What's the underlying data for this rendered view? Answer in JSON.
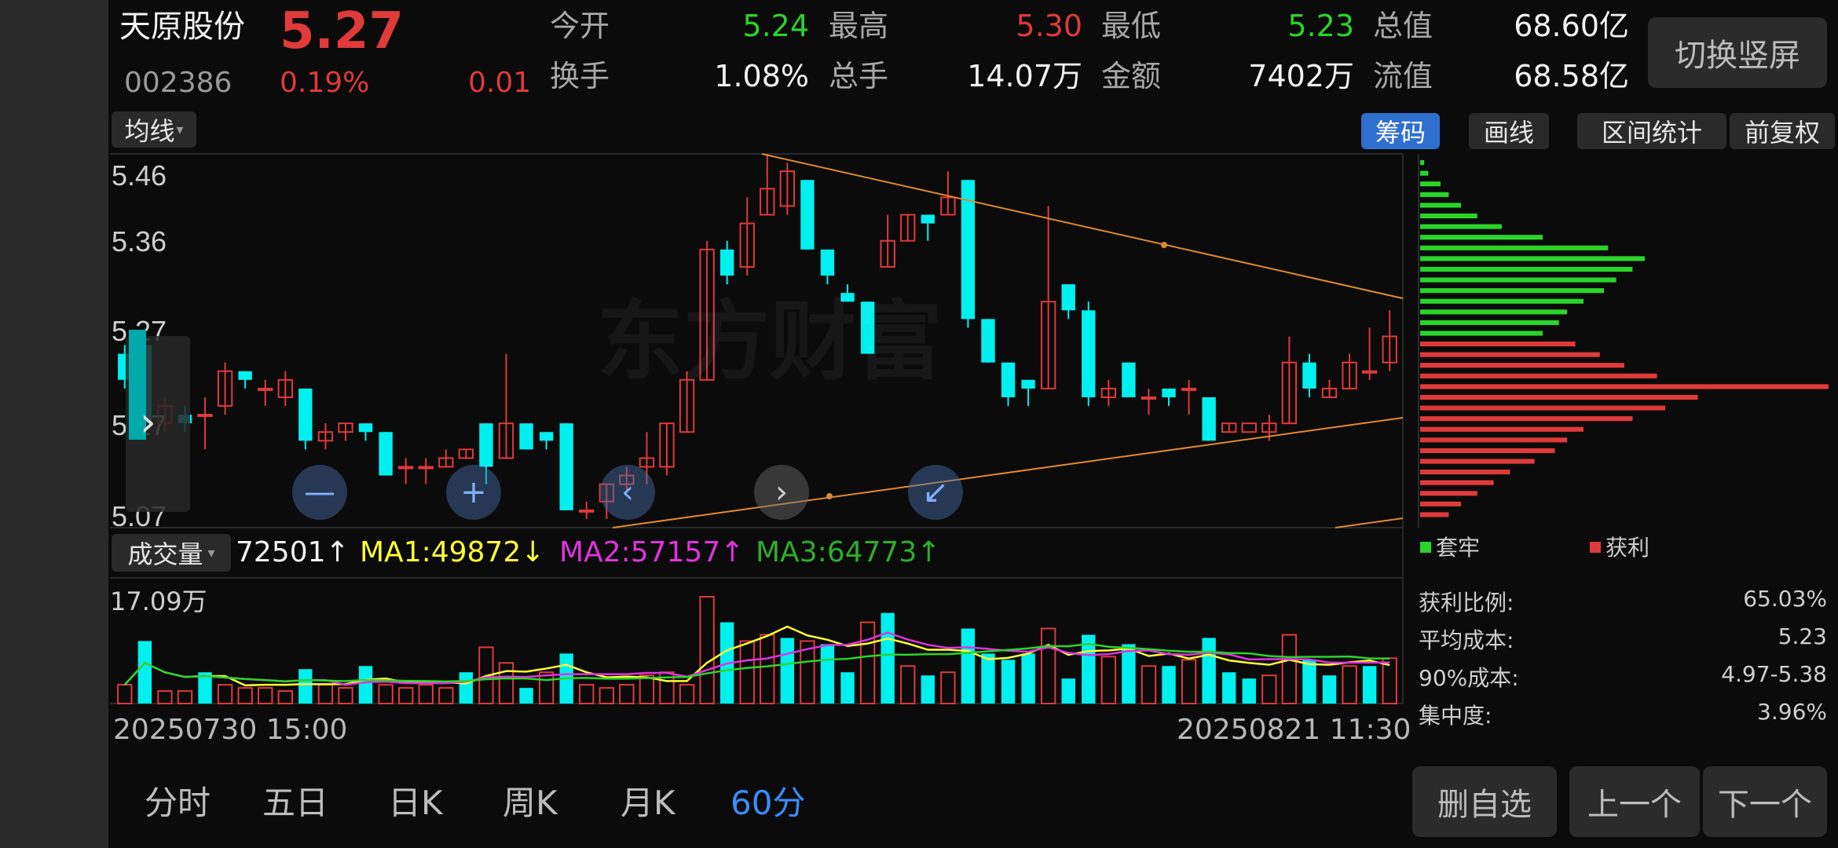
{
  "stock": {
    "name": "天原股份",
    "code": "002386",
    "price": "5.27",
    "change_pct": "0.19%",
    "change": "0.01"
  },
  "stats": [
    {
      "label": "今开",
      "value": "5.24",
      "color": "green"
    },
    {
      "label": "最高",
      "value": "5.30",
      "color": "red"
    },
    {
      "label": "最低",
      "value": "5.23",
      "color": "green"
    },
    {
      "label": "总值",
      "value": "68.60亿",
      "color": "white"
    },
    {
      "label": "换手",
      "value": "1.08%",
      "color": "white"
    },
    {
      "label": "总手",
      "value": "14.07万",
      "color": "white"
    },
    {
      "label": "金额",
      "value": "7402万",
      "color": "white"
    },
    {
      "label": "流值",
      "value": "68.58亿",
      "color": "white"
    }
  ],
  "switch_button": "切换竖屏",
  "toolbar": {
    "ma_select": "均线",
    "chips": [
      "筹码",
      "画线",
      "区间统计",
      "前复权"
    ],
    "active_chip": "筹码"
  },
  "price_axis": [
    "5.46",
    "5.36",
    "5.27",
    "5.17",
    "5.07"
  ],
  "volume_bar": {
    "select": "成交量",
    "vol": "72501↑",
    "ma1": "MA1:49872↓",
    "ma2": "MA2:57157↑",
    "ma3": "MA3:64773↑",
    "ma1_color": "#ffff33",
    "ma2_color": "#e033e0",
    "ma3_color": "#2bd42b"
  },
  "volume_max_label": "17.09万",
  "time_start": "20250730 15:00",
  "time_end": "20250821 11:30",
  "watermark": "东方财富",
  "chip_legend": [
    "套牢",
    "获利"
  ],
  "chip_info": [
    {
      "label": "获利比例:",
      "value": "65.03%"
    },
    {
      "label": "平均成本:",
      "value": "5.23"
    },
    {
      "label": "90%成本:",
      "value": "4.97-5.38"
    },
    {
      "label": "集中度:",
      "value": "3.96%"
    }
  ],
  "tabs": [
    "分时",
    "五日",
    "日K",
    "周K",
    "月K",
    "60分"
  ],
  "active_tab": "60分",
  "bottom_buttons": [
    "删自选",
    "上一个",
    "下一个"
  ],
  "colors": {
    "up": "#e03a3a",
    "down": "#00f0f0",
    "accent": "#3c8cff"
  },
  "chart_data": {
    "type": "candlestick",
    "price_ylim": [
      5.05,
      5.48
    ],
    "candles": [
      [
        5.25,
        5.22,
        5.26,
        5.21
      ],
      [
        5.26,
        5.17,
        5.27,
        5.16
      ],
      [
        5.17,
        5.19,
        5.2,
        5.16
      ],
      [
        5.18,
        5.17,
        5.19,
        5.16
      ],
      [
        5.18,
        5.18,
        5.2,
        5.14
      ],
      [
        5.19,
        5.23,
        5.24,
        5.18
      ],
      [
        5.23,
        5.22,
        5.23,
        5.21
      ],
      [
        5.21,
        5.21,
        5.22,
        5.19
      ],
      [
        5.2,
        5.22,
        5.23,
        5.19
      ],
      [
        5.21,
        5.15,
        5.21,
        5.14
      ],
      [
        5.15,
        5.16,
        5.17,
        5.14
      ],
      [
        5.16,
        5.17,
        5.17,
        5.15
      ],
      [
        5.17,
        5.16,
        5.17,
        5.15
      ],
      [
        5.16,
        5.11,
        5.16,
        5.11
      ],
      [
        5.12,
        5.12,
        5.13,
        5.1
      ],
      [
        5.12,
        5.12,
        5.13,
        5.1
      ],
      [
        5.12,
        5.13,
        5.14,
        5.12
      ],
      [
        5.13,
        5.14,
        5.14,
        5.13
      ],
      [
        5.17,
        5.12,
        5.17,
        5.1
      ],
      [
        5.13,
        5.17,
        5.25,
        5.13
      ],
      [
        5.17,
        5.14,
        5.17,
        5.14
      ],
      [
        5.16,
        5.15,
        5.16,
        5.14
      ],
      [
        5.17,
        5.07,
        5.17,
        5.07
      ],
      [
        5.07,
        5.07,
        5.08,
        5.06
      ],
      [
        5.08,
        5.1,
        5.1,
        5.06
      ],
      [
        5.1,
        5.11,
        5.12,
        5.09
      ],
      [
        5.12,
        5.13,
        5.16,
        5.1
      ],
      [
        5.12,
        5.17,
        5.17,
        5.11
      ],
      [
        5.16,
        5.22,
        5.23,
        5.16
      ],
      [
        5.22,
        5.37,
        5.38,
        5.22
      ],
      [
        5.37,
        5.34,
        5.38,
        5.33
      ],
      [
        5.35,
        5.4,
        5.43,
        5.34
      ],
      [
        5.41,
        5.44,
        5.48,
        5.41
      ],
      [
        5.42,
        5.46,
        5.47,
        5.41
      ],
      [
        5.45,
        5.37,
        5.45,
        5.37
      ],
      [
        5.37,
        5.34,
        5.37,
        5.33
      ],
      [
        5.32,
        5.31,
        5.33,
        5.31
      ],
      [
        5.31,
        5.25,
        5.31,
        5.25
      ],
      [
        5.35,
        5.38,
        5.41,
        5.35
      ],
      [
        5.38,
        5.41,
        5.41,
        5.38
      ],
      [
        5.41,
        5.4,
        5.41,
        5.38
      ],
      [
        5.41,
        5.43,
        5.46,
        5.41
      ],
      [
        5.45,
        5.29,
        5.45,
        5.28
      ],
      [
        5.29,
        5.24,
        5.29,
        5.24
      ],
      [
        5.24,
        5.2,
        5.24,
        5.19
      ],
      [
        5.22,
        5.21,
        5.22,
        5.19
      ],
      [
        5.21,
        5.31,
        5.42,
        5.21
      ],
      [
        5.33,
        5.3,
        5.33,
        5.29
      ],
      [
        5.3,
        5.2,
        5.31,
        5.19
      ],
      [
        5.2,
        5.21,
        5.22,
        5.19
      ],
      [
        5.24,
        5.2,
        5.24,
        5.2
      ],
      [
        5.2,
        5.2,
        5.21,
        5.18
      ],
      [
        5.21,
        5.2,
        5.21,
        5.19
      ],
      [
        5.21,
        5.21,
        5.22,
        5.18
      ],
      [
        5.2,
        5.15,
        5.2,
        5.15
      ],
      [
        5.16,
        5.17,
        5.17,
        5.16
      ],
      [
        5.16,
        5.17,
        5.16,
        5.16
      ],
      [
        5.16,
        5.17,
        5.18,
        5.15
      ],
      [
        5.17,
        5.24,
        5.27,
        5.17
      ],
      [
        5.24,
        5.21,
        5.25,
        5.2
      ],
      [
        5.2,
        5.21,
        5.22,
        5.2
      ],
      [
        5.21,
        5.24,
        5.25,
        5.21
      ],
      [
        5.23,
        5.23,
        5.28,
        5.22
      ],
      [
        5.24,
        5.27,
        5.3,
        5.23
      ]
    ],
    "volume_max": 170900,
    "volumes": [
      [
        30000,
        0
      ],
      [
        100000,
        1
      ],
      [
        20000,
        0
      ],
      [
        20000,
        0
      ],
      [
        50000,
        1
      ],
      [
        30000,
        0
      ],
      [
        25000,
        0
      ],
      [
        25000,
        0
      ],
      [
        20000,
        0
      ],
      [
        55000,
        1
      ],
      [
        30000,
        0
      ],
      [
        25000,
        0
      ],
      [
        60000,
        1
      ],
      [
        30000,
        0
      ],
      [
        25000,
        0
      ],
      [
        30000,
        0
      ],
      [
        25000,
        0
      ],
      [
        50000,
        1
      ],
      [
        90000,
        0
      ],
      [
        65000,
        0
      ],
      [
        25000,
        1
      ],
      [
        50000,
        0
      ],
      [
        80000,
        1
      ],
      [
        30000,
        0
      ],
      [
        25000,
        0
      ],
      [
        30000,
        0
      ],
      [
        45000,
        0
      ],
      [
        50000,
        0
      ],
      [
        30000,
        0
      ],
      [
        170900,
        0
      ],
      [
        130000,
        1
      ],
      [
        100000,
        0
      ],
      [
        110000,
        0
      ],
      [
        105000,
        1
      ],
      [
        100000,
        0
      ],
      [
        95000,
        1
      ],
      [
        50000,
        1
      ],
      [
        130000,
        0
      ],
      [
        145000,
        1
      ],
      [
        60000,
        0
      ],
      [
        45000,
        1
      ],
      [
        50000,
        0
      ],
      [
        120000,
        1
      ],
      [
        80000,
        1
      ],
      [
        70000,
        1
      ],
      [
        80000,
        1
      ],
      [
        120000,
        0
      ],
      [
        40000,
        1
      ],
      [
        110000,
        1
      ],
      [
        75000,
        0
      ],
      [
        95000,
        1
      ],
      [
        60000,
        0
      ],
      [
        60000,
        1
      ],
      [
        70000,
        0
      ],
      [
        105000,
        1
      ],
      [
        50000,
        1
      ],
      [
        40000,
        1
      ],
      [
        45000,
        0
      ],
      [
        110000,
        0
      ],
      [
        70000,
        1
      ],
      [
        45000,
        1
      ],
      [
        60000,
        0
      ],
      [
        60000,
        1
      ],
      [
        72501,
        0
      ]
    ],
    "chip_distribution": [
      {
        "profit": false,
        "v": 0.01
      },
      {
        "profit": false,
        "v": 0.02
      },
      {
        "profit": false,
        "v": 0.05
      },
      {
        "profit": false,
        "v": 0.07
      },
      {
        "profit": false,
        "v": 0.1
      },
      {
        "profit": false,
        "v": 0.14
      },
      {
        "profit": false,
        "v": 0.2
      },
      {
        "profit": false,
        "v": 0.3
      },
      {
        "profit": false,
        "v": 0.46
      },
      {
        "profit": false,
        "v": 0.55
      },
      {
        "profit": false,
        "v": 0.52
      },
      {
        "profit": false,
        "v": 0.48
      },
      {
        "profit": false,
        "v": 0.45
      },
      {
        "profit": false,
        "v": 0.4
      },
      {
        "profit": false,
        "v": 0.36
      },
      {
        "profit": false,
        "v": 0.34
      },
      {
        "profit": false,
        "v": 0.3
      },
      {
        "profit": true,
        "v": 0.38
      },
      {
        "profit": true,
        "v": 0.44
      },
      {
        "profit": true,
        "v": 0.5
      },
      {
        "profit": true,
        "v": 0.58
      },
      {
        "profit": true,
        "v": 1.0
      },
      {
        "profit": true,
        "v": 0.68
      },
      {
        "profit": true,
        "v": 0.6
      },
      {
        "profit": true,
        "v": 0.52
      },
      {
        "profit": true,
        "v": 0.4
      },
      {
        "profit": true,
        "v": 0.36
      },
      {
        "profit": true,
        "v": 0.33
      },
      {
        "profit": true,
        "v": 0.28
      },
      {
        "profit": true,
        "v": 0.22
      },
      {
        "profit": true,
        "v": 0.18
      },
      {
        "profit": true,
        "v": 0.14
      },
      {
        "profit": true,
        "v": 0.1
      },
      {
        "profit": true,
        "v": 0.07
      }
    ]
  }
}
